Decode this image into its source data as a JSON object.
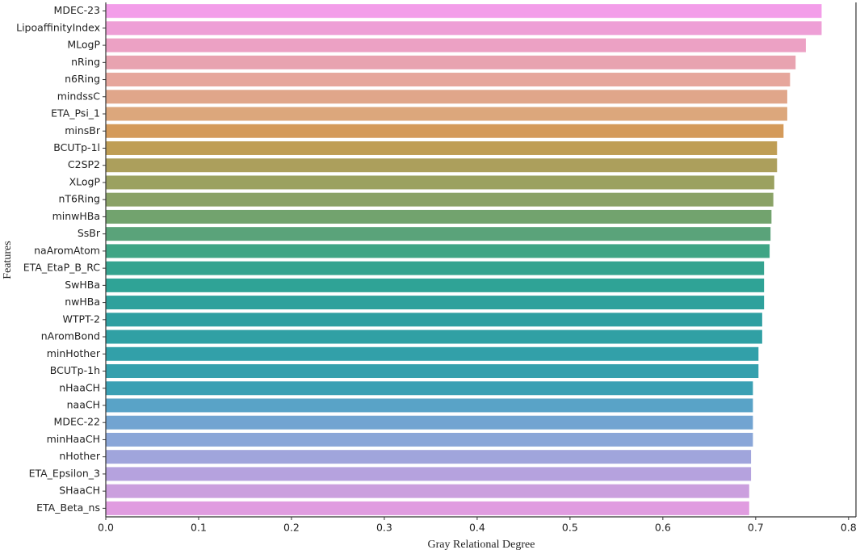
{
  "chart_data": {
    "type": "bar",
    "orientation": "horizontal",
    "x_label": "Gray Relational Degree",
    "y_label": "Features",
    "categories": [
      "MDEC-23",
      "LipoaffinityIndex",
      "MLogP",
      "nRing",
      "n6Ring",
      "mindssC",
      "ETA_Psi_1",
      "minsBr",
      "BCUTp-1l",
      "C2SP2",
      "XLogP",
      "nT6Ring",
      "minwHBa",
      "SsBr",
      "naAromAtom",
      "ETA_EtaP_B_RC",
      "SwHBa",
      "nwHBa",
      "WTPT-2",
      "nAromBond",
      "minHother",
      "BCUTp-1h",
      "nHaaCH",
      "naaCH",
      "MDEC-22",
      "minHaaCH",
      "nHother",
      "ETA_Epsilon_3",
      "SHaaCH",
      "ETA_Beta_ns"
    ],
    "values": [
      0.771,
      0.771,
      0.754,
      0.743,
      0.737,
      0.734,
      0.734,
      0.73,
      0.723,
      0.723,
      0.72,
      0.719,
      0.717,
      0.716,
      0.715,
      0.709,
      0.709,
      0.709,
      0.707,
      0.707,
      0.703,
      0.703,
      0.697,
      0.697,
      0.697,
      0.697,
      0.695,
      0.695,
      0.693,
      0.693
    ],
    "colors": [
      "#f39de9",
      "#ee9fd6",
      "#eca1c4",
      "#e8a3b0",
      "#e6a69c",
      "#e0a68a",
      "#dca77c",
      "#d49a5a",
      "#bf9e55",
      "#ac9f5c",
      "#9ba160",
      "#8aa266",
      "#72a36e",
      "#5aa37a",
      "#3fa585",
      "#35a38f",
      "#2fa396",
      "#2ea19c",
      "#2e9fa1",
      "#30a0a4",
      "#32a0a9",
      "#35a0ad",
      "#3aa0b4",
      "#59a3c7",
      "#72a4d1",
      "#8aa6d8",
      "#a0a5dc",
      "#b5a2de",
      "#cb9fde",
      "#e09ce0"
    ],
    "xlim": [
      0,
      0.808
    ],
    "xticks": [
      {
        "value": 0,
        "label": "0.0"
      },
      0.1,
      0.2,
      0.3,
      0.4,
      0.5,
      0.6,
      0.7,
      0.8
    ]
  }
}
